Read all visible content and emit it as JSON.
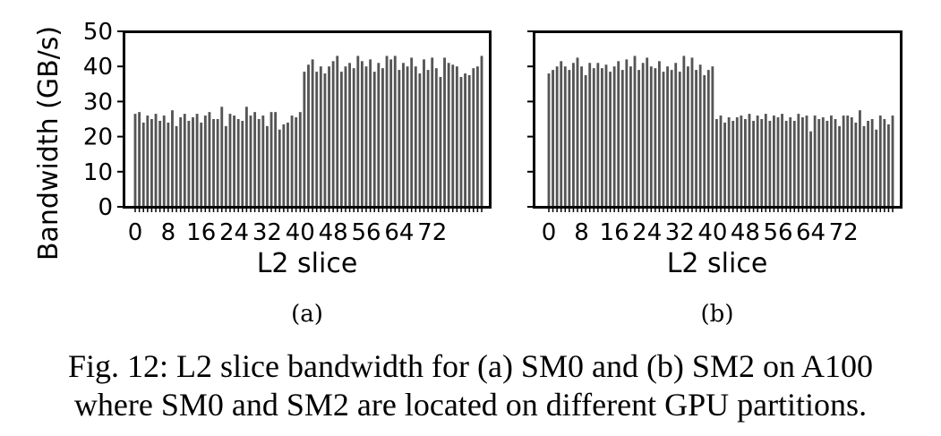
{
  "figure": {
    "caption_line1": "Fig. 12: L2 slice bandwidth for (a) SM0 and (b) SM2 on A100",
    "caption_line2": "where SM0 and SM2 are located on different GPU partitions.",
    "ylabel": "Bandwidth (GB/s)",
    "colors": {
      "bar": "#555555",
      "axis": "#000000",
      "text": "#000000"
    }
  },
  "chart_data": [
    {
      "type": "bar",
      "subfigure_label": "(a)",
      "xlabel": "L2 slice",
      "ylabel": "Bandwidth (GB/s)",
      "ylim": [
        0,
        50
      ],
      "yticks": [
        0,
        10,
        20,
        30,
        40,
        50
      ],
      "xtick_values": [
        0,
        8,
        16,
        24,
        32,
        40,
        48,
        56,
        64,
        72
      ],
      "values": [
        26.5,
        27,
        24,
        26,
        25,
        26.5,
        24.5,
        26,
        24,
        27.5,
        23,
        25.5,
        26.5,
        24.5,
        25.5,
        26.5,
        24,
        26,
        27,
        25,
        25,
        28.5,
        23,
        26.5,
        26,
        25,
        24.5,
        28.5,
        26,
        27,
        25,
        26,
        23,
        27,
        27,
        22,
        23.5,
        24,
        26,
        25.5,
        27,
        38.5,
        40.5,
        42,
        38.5,
        40,
        38,
        40,
        41.5,
        43,
        38.5,
        40,
        41,
        39.5,
        43,
        41.5,
        40,
        42,
        38.5,
        41,
        39.5,
        43,
        42,
        43,
        39,
        41,
        40,
        42.5,
        40,
        38,
        42,
        39,
        42.5,
        39.5,
        37,
        42.5,
        41,
        40.5,
        40,
        37,
        38,
        37.5,
        39.5,
        40,
        43
      ]
    },
    {
      "type": "bar",
      "subfigure_label": "(b)",
      "xlabel": "L2 slice",
      "ylabel": "Bandwidth (GB/s)",
      "ylim": [
        0,
        50
      ],
      "yticks": [
        0,
        10,
        20,
        30,
        40,
        50
      ],
      "xtick_values": [
        0,
        8,
        16,
        24,
        32,
        40,
        48,
        56,
        64,
        72
      ],
      "values": [
        38,
        39,
        40,
        41.5,
        40,
        39,
        41,
        42.5,
        40,
        37.5,
        41,
        39.5,
        41,
        39.5,
        40.5,
        38.5,
        40,
        41.5,
        39,
        42,
        40,
        43,
        39,
        41,
        42.5,
        40,
        39.5,
        41.5,
        38.5,
        40,
        39,
        41,
        38.5,
        43,
        40,
        42.5,
        39,
        40.5,
        37.5,
        39,
        40,
        25,
        26,
        24,
        25.5,
        24.5,
        25.5,
        26,
        25,
        26.5,
        24.5,
        26,
        25,
        26.5,
        24.5,
        26,
        25.5,
        26.5,
        24.5,
        25.5,
        24.5,
        26.5,
        25.5,
        26,
        21.5,
        26,
        25,
        25.5,
        24.5,
        26,
        25,
        23,
        26,
        26,
        25.5,
        24,
        27.5,
        23,
        24.5,
        25,
        22,
        26,
        25,
        23.5,
        26
      ]
    }
  ]
}
